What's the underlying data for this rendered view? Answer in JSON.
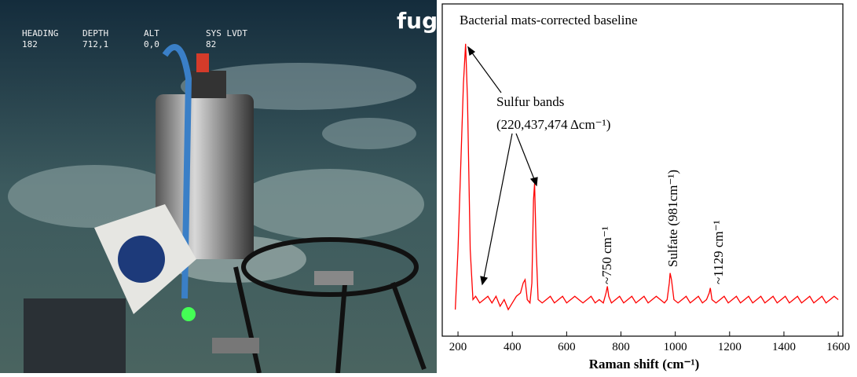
{
  "photo": {
    "overlay": [
      {
        "label": "HEADING",
        "value": "182"
      },
      {
        "label": "DEPTH",
        "value": "712,1"
      },
      {
        "label": "ALT",
        "value": "0,0"
      },
      {
        "label": "SYS LVDT",
        "value": "82"
      }
    ],
    "logo": "fug"
  },
  "chart_data": {
    "type": "line",
    "title": "Bacterial mats-corrected baseline",
    "x_label": "Raman shift (cm⁻¹)",
    "x": [
      190,
      200,
      210,
      220,
      228,
      235,
      245,
      255,
      265,
      280,
      295,
      310,
      325,
      340,
      355,
      370,
      385,
      400,
      415,
      430,
      440,
      447,
      455,
      465,
      472,
      478,
      482,
      488,
      495,
      510,
      525,
      540,
      555,
      570,
      585,
      600,
      615,
      630,
      645,
      660,
      675,
      690,
      705,
      720,
      735,
      745,
      750,
      755,
      765,
      780,
      795,
      810,
      825,
      840,
      855,
      870,
      885,
      900,
      915,
      930,
      945,
      960,
      970,
      978,
      981,
      986,
      995,
      1010,
      1025,
      1040,
      1055,
      1070,
      1085,
      1100,
      1115,
      1125,
      1129,
      1135,
      1150,
      1165,
      1180,
      1195,
      1210,
      1225,
      1240,
      1255,
      1270,
      1285,
      1300,
      1315,
      1330,
      1345,
      1360,
      1375,
      1390,
      1405,
      1420,
      1435,
      1450,
      1465,
      1480,
      1495,
      1510,
      1525,
      1540,
      1555,
      1570,
      1585,
      1600
    ],
    "series": [
      {
        "color": "#ff0000",
        "values": [
          8,
          26,
          51,
          76,
          88,
          71,
          26,
          11,
          12,
          10,
          11,
          12,
          10,
          12,
          9,
          11,
          8,
          10,
          12,
          13,
          16,
          17,
          11,
          10,
          16,
          41,
          46,
          26,
          11,
          10,
          11,
          12,
          10,
          11,
          12,
          10,
          11,
          12,
          11,
          10,
          11,
          12,
          10,
          11,
          10,
          13,
          15,
          12,
          10,
          11,
          12,
          10,
          11,
          12,
          10,
          11,
          12,
          10,
          11,
          12,
          11,
          10,
          11,
          16,
          19,
          17,
          11,
          10,
          11,
          12,
          10,
          11,
          12,
          10,
          11,
          13,
          14.5,
          11,
          10,
          11,
          12,
          10,
          11,
          12,
          10,
          11,
          12,
          10,
          11,
          12,
          10,
          11,
          12,
          10,
          11,
          12,
          10,
          11,
          12,
          10,
          11,
          12,
          10,
          11,
          12,
          10,
          11,
          12,
          11
        ]
      }
    ],
    "xlim": [
      142,
      1617
    ],
    "ylim": [
      0,
      100
    ],
    "xticks": [
      200,
      400,
      600,
      800,
      1000,
      1200,
      1400,
      1600
    ],
    "annotations": [
      "Sulfur bands",
      "(220,437,474 Δcm⁻¹)",
      "~750 cm⁻¹",
      "Sulfate (981cm⁻¹)",
      "~1129 cm⁻¹"
    ]
  }
}
